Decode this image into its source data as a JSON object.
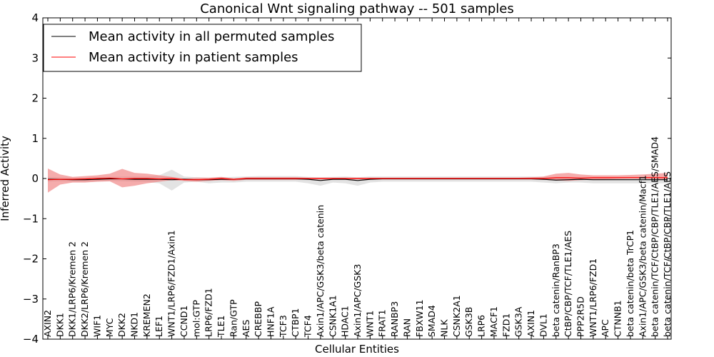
{
  "chart_data": {
    "type": "line",
    "title": "Canonical Wnt signaling pathway -- 501 samples",
    "xlabel": "Cellular Entities",
    "ylabel": "Inferred Activity",
    "ylim": [
      -4,
      4
    ],
    "yticks": [
      4,
      3,
      2,
      1,
      0,
      -1,
      -2,
      -3,
      -4
    ],
    "ytick_labels": [
      "4",
      "3",
      "2",
      "1",
      "0",
      "−1",
      "−2",
      "−3",
      "−4"
    ],
    "legend_position": "top-left",
    "legend": [
      {
        "label": "Mean activity in all permuted samples",
        "color": "#000000"
      },
      {
        "label": "Mean activity in patient samples",
        "color": "#ff0000"
      }
    ],
    "categories": [
      "AXIN2",
      "DKK1",
      "DKK1/LRP6/Kremen 2",
      "DKK2/LRP6/Kremen 2",
      "WIF1",
      "MYC",
      "DKK2",
      "NKD1",
      "KREMEN2",
      "LEF1",
      "WNT1/LRP6/FZD1/Axin1",
      "CCND1",
      "mol:GTP",
      "LRP6/FZD1",
      "TLE1",
      "Ran/GTP",
      "AES",
      "CREBBP",
      "HNF1A",
      "TCF3",
      "CTBP1",
      "TCF4",
      "Axin1/APC/GSK3/beta catenin",
      "CSNK1A1",
      "HDAC1",
      "Axin1/APC/GSK3",
      "WNT1",
      "FRAT1",
      "RANBP3",
      "RAN",
      "FBXW11",
      "SMAD4",
      "NLK",
      "CSNK2A1",
      "GSK3B",
      "LRP6",
      "MACF1",
      "FZD1",
      "GSK3A",
      "AXIN1",
      "DVL1",
      "beta catenin/RanBP3",
      "CtBP/CBP/TCF/TLE1/AES",
      "PPP2R5D",
      "WNT1/LRP6/FZD1",
      "APC",
      "CTNNB1",
      "beta catenin/beta TrCP1",
      "Axin1/APC/GSK3/beta catenin/Macf1",
      "beta catenin/TCF/CtBP/CBP/TLE1/AES/SMAD4",
      "beta catenin/TCF/CtBP/CBP/TLE1/AES"
    ],
    "series": [
      {
        "name": "Mean activity in all permuted samples",
        "color": "#000000",
        "band_color": "#cccccc",
        "values": [
          -0.02,
          -0.02,
          -0.03,
          -0.03,
          -0.02,
          -0.01,
          -0.01,
          -0.02,
          -0.02,
          -0.02,
          -0.03,
          -0.02,
          -0.03,
          -0.03,
          -0.02,
          -0.02,
          -0.01,
          -0.01,
          -0.01,
          -0.01,
          -0.01,
          -0.02,
          -0.05,
          -0.02,
          -0.02,
          -0.05,
          -0.02,
          -0.01,
          -0.01,
          -0.01,
          -0.01,
          -0.01,
          -0.01,
          -0.01,
          -0.01,
          -0.01,
          -0.01,
          -0.01,
          -0.01,
          -0.01,
          -0.02,
          -0.04,
          -0.03,
          -0.02,
          -0.03,
          -0.03,
          -0.03,
          -0.03,
          -0.03,
          -0.03,
          -0.03
        ],
        "upper": [
          0.04,
          0.03,
          0.02,
          0.02,
          0.03,
          0.04,
          0.05,
          0.05,
          0.05,
          0.08,
          0.22,
          0.05,
          0.03,
          0.02,
          0.03,
          0.04,
          0.05,
          0.06,
          0.06,
          0.06,
          0.06,
          0.04,
          0.03,
          0.04,
          0.05,
          0.03,
          0.05,
          0.05,
          0.05,
          0.05,
          0.05,
          0.05,
          0.05,
          0.05,
          0.05,
          0.05,
          0.05,
          0.05,
          0.05,
          0.05,
          0.04,
          0.02,
          0.02,
          0.03,
          0.02,
          0.02,
          0.02,
          0.02,
          0.02,
          0.02,
          0.02
        ],
        "lower": [
          -0.08,
          -0.07,
          -0.08,
          -0.08,
          -0.07,
          -0.06,
          -0.07,
          -0.08,
          -0.09,
          -0.12,
          -0.3,
          -0.1,
          -0.08,
          -0.12,
          -0.1,
          -0.1,
          -0.08,
          -0.08,
          -0.08,
          -0.08,
          -0.08,
          -0.12,
          -0.18,
          -0.1,
          -0.12,
          -0.18,
          -0.1,
          -0.08,
          -0.08,
          -0.08,
          -0.08,
          -0.08,
          -0.08,
          -0.08,
          -0.08,
          -0.08,
          -0.08,
          -0.08,
          -0.08,
          -0.08,
          -0.1,
          -0.12,
          -0.1,
          -0.1,
          -0.12,
          -0.12,
          -0.12,
          -0.12,
          -0.12,
          -0.12,
          -0.12
        ]
      },
      {
        "name": "Mean activity in patient samples",
        "color": "#ff0000",
        "band_color": "#f08080",
        "values": [
          -0.03,
          -0.02,
          -0.02,
          -0.01,
          0.0,
          0.01,
          -0.01,
          0.0,
          0.0,
          -0.01,
          0.0,
          -0.03,
          -0.03,
          -0.02,
          0.0,
          -0.02,
          0.0,
          0.0,
          0.0,
          0.0,
          0.0,
          0.0,
          0.0,
          0.0,
          0.0,
          0.0,
          0.0,
          0.0,
          0.0,
          0.0,
          0.0,
          0.0,
          0.0,
          0.0,
          0.0,
          0.0,
          0.0,
          0.0,
          0.0,
          0.0,
          0.0,
          0.02,
          0.02,
          0.01,
          0.02,
          0.02,
          0.02,
          0.02,
          0.02,
          0.02,
          0.02
        ],
        "upper": [
          0.25,
          0.1,
          0.04,
          0.06,
          0.08,
          0.12,
          0.24,
          0.14,
          0.12,
          0.08,
          0.04,
          0.0,
          0.02,
          0.02,
          0.04,
          0.0,
          0.03,
          0.03,
          0.03,
          0.03,
          0.03,
          0.02,
          0.02,
          0.02,
          0.02,
          0.02,
          0.02,
          0.02,
          0.02,
          0.02,
          0.02,
          0.02,
          0.02,
          0.02,
          0.02,
          0.02,
          0.02,
          0.02,
          0.02,
          0.03,
          0.05,
          0.12,
          0.14,
          0.1,
          0.08,
          0.08,
          0.08,
          0.09,
          0.1,
          0.12,
          0.14
        ],
        "lower": [
          -0.35,
          -0.15,
          -0.1,
          -0.1,
          -0.08,
          -0.07,
          -0.22,
          -0.18,
          -0.12,
          -0.08,
          -0.04,
          -0.06,
          -0.08,
          -0.06,
          -0.04,
          -0.06,
          -0.03,
          -0.03,
          -0.03,
          -0.03,
          -0.03,
          -0.02,
          -0.02,
          -0.02,
          -0.02,
          -0.02,
          -0.02,
          -0.02,
          -0.02,
          -0.02,
          -0.02,
          -0.02,
          -0.02,
          -0.02,
          -0.02,
          -0.02,
          -0.02,
          -0.02,
          -0.02,
          -0.02,
          -0.03,
          -0.05,
          -0.06,
          -0.04,
          -0.03,
          -0.02,
          -0.01,
          0.0,
          0.0,
          -0.01,
          -0.02
        ]
      }
    ]
  }
}
